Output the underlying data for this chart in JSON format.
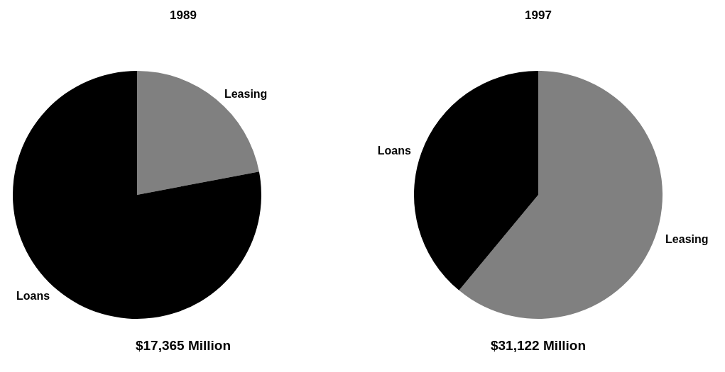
{
  "chart_data": [
    {
      "type": "pie",
      "title": "1989",
      "categories": [
        "Leasing",
        "Loans"
      ],
      "values": [
        22,
        78
      ],
      "colors": [
        "#808080",
        "#000000"
      ],
      "annotations": [
        "$17,365 Million"
      ],
      "legend": false
    },
    {
      "type": "pie",
      "title": "1997",
      "categories": [
        "Leasing",
        "Loans"
      ],
      "values": [
        61,
        39
      ],
      "colors": [
        "#808080",
        "#000000"
      ],
      "annotations": [
        "$31,122 Million"
      ],
      "legend": false
    }
  ]
}
